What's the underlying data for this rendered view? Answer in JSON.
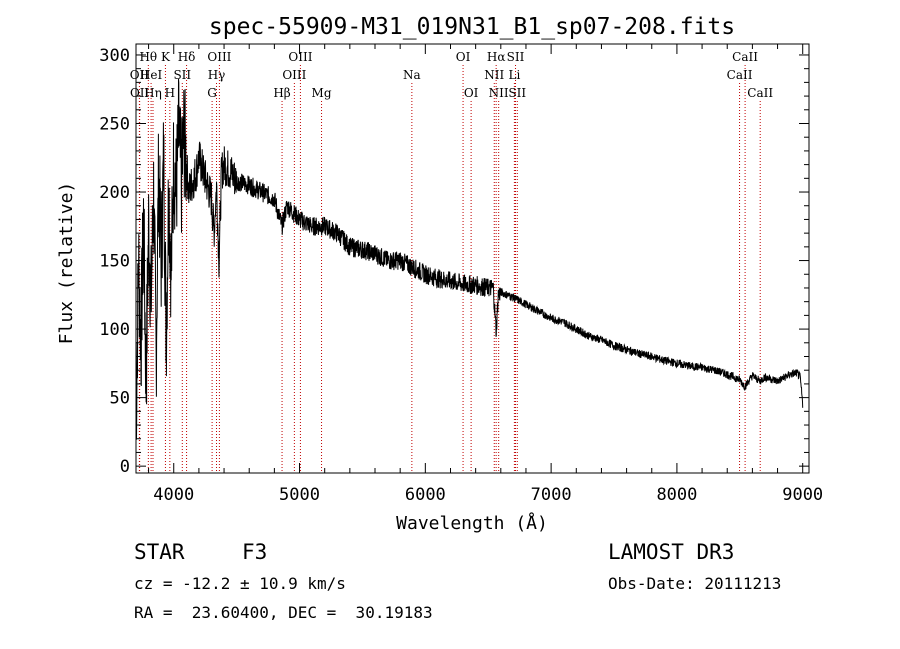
{
  "chart_data": {
    "type": "line",
    "title": "spec-55909-M31_019N31_B1_sp07-208.fits",
    "xlabel": "Wavelength (Å)",
    "ylabel": "Flux (relative)",
    "xlim": [
      3700,
      9050
    ],
    "ylim": [
      -5,
      308
    ],
    "x_ticks": [
      4000,
      5000,
      6000,
      7000,
      8000,
      9000
    ],
    "y_ticks": [
      0,
      50,
      100,
      150,
      200,
      250,
      300
    ],
    "series": [
      {
        "name": "flux",
        "x": [
          3700,
          3720,
          3740,
          3760,
          3780,
          3800,
          3820,
          3840,
          3860,
          3880,
          3900,
          3920,
          3940,
          3960,
          3980,
          4000,
          4020,
          4040,
          4060,
          4080,
          4100,
          4120,
          4140,
          4160,
          4180,
          4200,
          4250,
          4300,
          4320,
          4340,
          4360,
          4380,
          4400,
          4450,
          4500,
          4600,
          4700,
          4800,
          4860,
          4900,
          5000,
          5100,
          5200,
          5300,
          5400,
          5500,
          5600,
          5700,
          5800,
          5900,
          6000,
          6100,
          6200,
          6300,
          6400,
          6500,
          6540,
          6563,
          6580,
          6600,
          6700,
          6800,
          6900,
          7000,
          7100,
          7200,
          7300,
          7400,
          7500,
          7600,
          7700,
          7800,
          7900,
          8000,
          8100,
          8200,
          8300,
          8400,
          8500,
          8540,
          8600,
          8660,
          8700,
          8800,
          8900,
          8950,
          8980,
          9000
        ],
        "y": [
          30,
          150,
          90,
          180,
          60,
          175,
          120,
          200,
          80,
          215,
          150,
          225,
          95,
          205,
          140,
          225,
          200,
          245,
          205,
          240,
          222,
          200,
          205,
          210,
          215,
          225,
          210,
          195,
          170,
          205,
          150,
          215,
          220,
          215,
          208,
          205,
          200,
          195,
          175,
          190,
          180,
          175,
          175,
          170,
          160,
          158,
          155,
          150,
          150,
          145,
          140,
          137,
          135,
          133,
          132,
          130,
          130,
          98,
          125,
          127,
          123,
          118,
          113,
          108,
          105,
          100,
          95,
          92,
          88,
          85,
          82,
          80,
          77,
          75,
          73,
          72,
          70,
          67,
          63,
          58,
          66,
          62,
          65,
          62,
          67,
          68,
          65,
          45
        ]
      }
    ],
    "lines": [
      {
        "label": "Hθ",
        "x": 3798,
        "row": 0
      },
      {
        "label": "OII",
        "x": 3727,
        "row": 1
      },
      {
        "label": "OII",
        "x": 3729,
        "row": 2
      },
      {
        "label": "HeI",
        "x": 3820,
        "row": 1
      },
      {
        "label": "Hη",
        "x": 3835,
        "row": 2
      },
      {
        "label": "K",
        "x": 3934,
        "row": 0
      },
      {
        "label": "SII",
        "x": 4068,
        "row": 1
      },
      {
        "label": "H",
        "x": 3969,
        "row": 2
      },
      {
        "label": "Hδ",
        "x": 4102,
        "row": 0
      },
      {
        "label": "OIII",
        "x": 4363,
        "row": 0
      },
      {
        "label": "Hγ",
        "x": 4340,
        "row": 1
      },
      {
        "label": "G",
        "x": 4305,
        "row": 2
      },
      {
        "label": "OIII",
        "x": 5007,
        "row": 0
      },
      {
        "label": "OIII",
        "x": 4959,
        "row": 1
      },
      {
        "label": "Hβ",
        "x": 4861,
        "row": 2
      },
      {
        "label": "Mg",
        "x": 5175,
        "row": 2
      },
      {
        "label": "Na",
        "x": 5893,
        "row": 1
      },
      {
        "label": "OI",
        "x": 6300,
        "row": 0
      },
      {
        "label": "OI",
        "x": 6364,
        "row": 2
      },
      {
        "label": "Hα",
        "x": 6563,
        "row": 0
      },
      {
        "label": "NII",
        "x": 6548,
        "row": 1
      },
      {
        "label": "NII",
        "x": 6583,
        "row": 2
      },
      {
        "label": "SII",
        "x": 6717,
        "row": 0
      },
      {
        "label": "Li",
        "x": 6708,
        "row": 1
      },
      {
        "label": "SII",
        "x": 6731,
        "row": 2
      },
      {
        "label": "CaII",
        "x": 8542,
        "row": 0
      },
      {
        "label": "CaII",
        "x": 8498,
        "row": 1
      },
      {
        "label": "CaII",
        "x": 8662,
        "row": 2
      }
    ]
  },
  "info": {
    "object_class": "STAR",
    "subclass": "F3",
    "survey": "LAMOST DR3",
    "redshift": "cz = -12.2 ± 10.9 km/s",
    "obs_date": "Obs-Date: 20111213",
    "coords": "RA =  23.60400, DEC =  30.19183"
  }
}
